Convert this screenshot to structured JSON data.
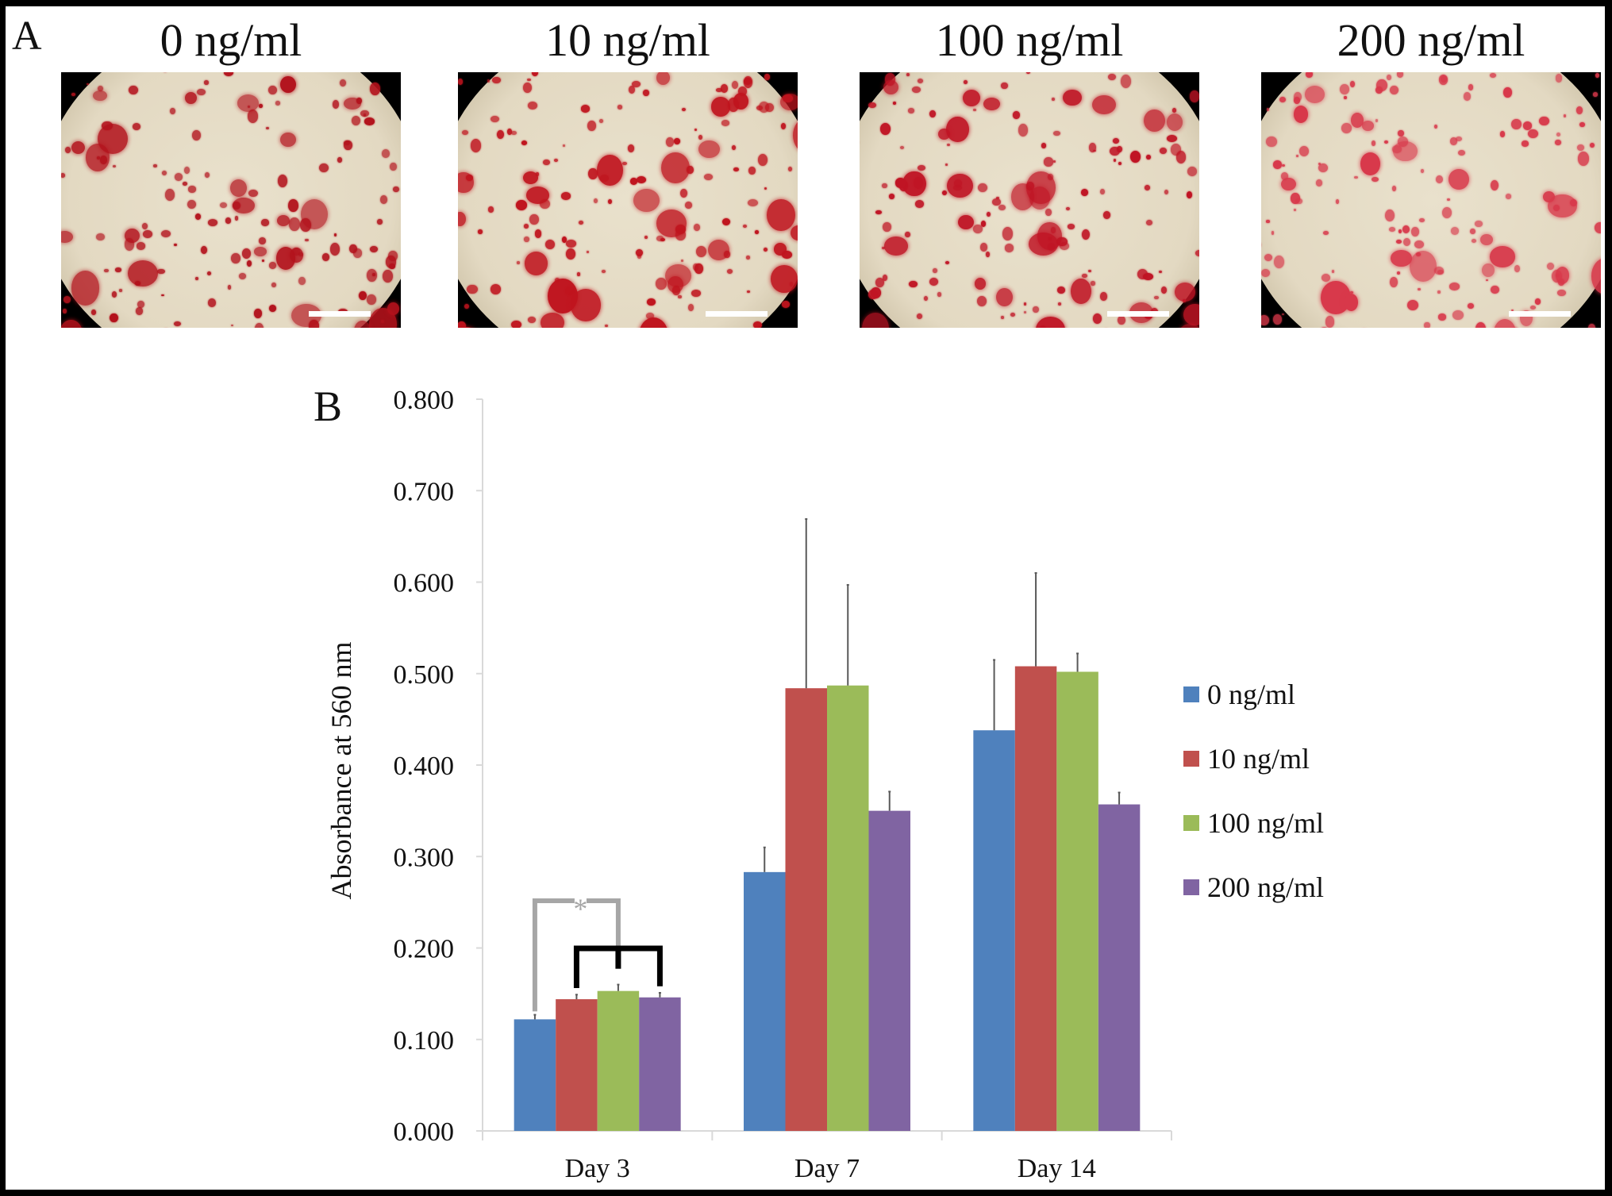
{
  "figure": {
    "panel_a_label": "A",
    "panel_b_label": "B",
    "micrographs": [
      {
        "title": "0 ng/ml",
        "stain_color": "#b3121c",
        "density": "high",
        "has_scale_bar": true
      },
      {
        "title": "10 ng/ml",
        "stain_color": "#c0141e",
        "density": "high",
        "has_scale_bar": true
      },
      {
        "title": "100 ng/ml",
        "stain_color": "#c01424",
        "density": "high",
        "has_scale_bar": true
      },
      {
        "title": "200 ng/ml",
        "stain_color": "#d8384a",
        "density": "high",
        "has_scale_bar": true
      }
    ]
  },
  "chart_data": {
    "type": "bar",
    "title": "",
    "xlabel": "",
    "ylabel": "Absorbance at 560 nm",
    "ylim": [
      0,
      0.8
    ],
    "yticks": [
      "0.000",
      "0.100",
      "0.200",
      "0.300",
      "0.400",
      "0.500",
      "0.600",
      "0.700",
      "0.800"
    ],
    "ytick_values": [
      0,
      0.1,
      0.2,
      0.3,
      0.4,
      0.5,
      0.6,
      0.7,
      0.8
    ],
    "grid": false,
    "legend_position": "right",
    "categories": [
      "Day 3",
      "Day 7",
      "Day 14"
    ],
    "series": [
      {
        "name": "0 ng/ml",
        "color": "#4f81bd",
        "values": [
          0.122,
          0.283,
          0.438
        ],
        "errors": [
          0.005,
          0.027,
          0.077
        ]
      },
      {
        "name": "10 ng/ml",
        "color": "#c0504d",
        "values": [
          0.144,
          0.484,
          0.508
        ],
        "errors": [
          0.005,
          0.185,
          0.102
        ]
      },
      {
        "name": "100 ng/ml",
        "color": "#9bbb59",
        "values": [
          0.153,
          0.487,
          0.502
        ],
        "errors": [
          0.007,
          0.11,
          0.02
        ]
      },
      {
        "name": "200 ng/ml",
        "color": "#8064a2",
        "values": [
          0.146,
          0.35,
          0.357
        ],
        "errors": [
          0.005,
          0.021,
          0.013
        ]
      }
    ],
    "annotations": [
      {
        "type": "significance",
        "text": "*",
        "category": "Day 3",
        "from_series": "0 ng/ml",
        "to_series": "100 ng/ml",
        "color": "#a6a6a6"
      },
      {
        "type": "bracket",
        "category": "Day 3",
        "series": [
          "10 ng/ml",
          "100 ng/ml",
          "200 ng/ml"
        ],
        "color": "#000000"
      }
    ],
    "error_bar_color": "#595959",
    "axis_color": "#d9d9d9"
  }
}
